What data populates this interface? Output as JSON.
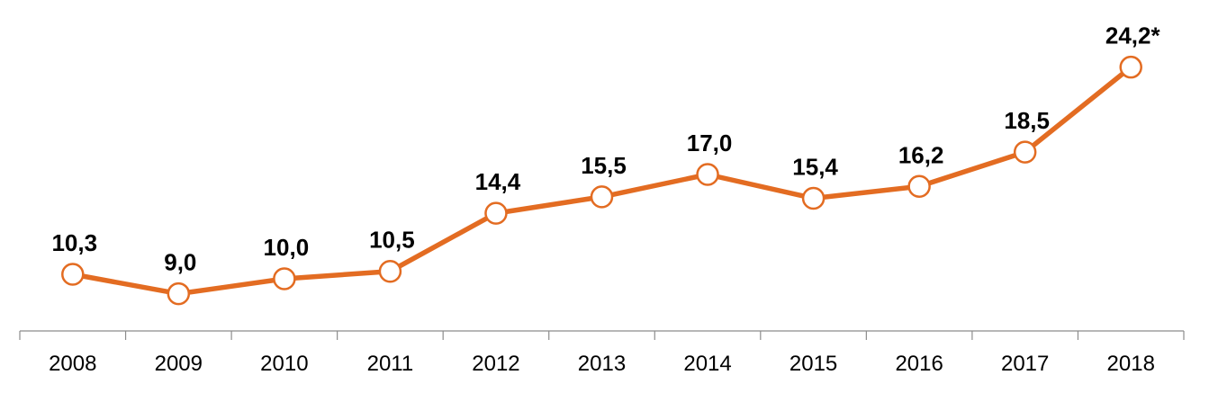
{
  "chart_data": {
    "type": "line",
    "title": "",
    "xlabel": "",
    "ylabel": "",
    "categories": [
      "2008",
      "2009",
      "2010",
      "2011",
      "2012",
      "2013",
      "2014",
      "2015",
      "2016",
      "2017",
      "2018"
    ],
    "series": [
      {
        "name": "",
        "values": [
          10.3,
          9.0,
          10.0,
          10.5,
          14.4,
          15.5,
          17.0,
          15.4,
          16.2,
          18.5,
          24.2
        ],
        "labels": [
          "10,3",
          "9,0",
          "10,0",
          "10,5",
          "14,4",
          "15,5",
          "17,0",
          "15,4",
          "16,2",
          "18,5",
          "24,2*"
        ]
      }
    ],
    "ylim": [
      6.5,
      27.5
    ],
    "grid": false,
    "legend": "none"
  },
  "colors": {
    "line": "#e36c22",
    "marker_fill": "#ffffff",
    "axis": "#8c8c8c",
    "text": "#000000"
  }
}
